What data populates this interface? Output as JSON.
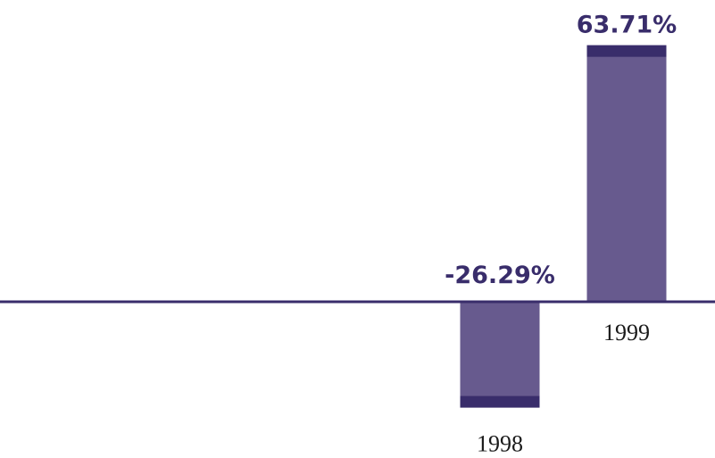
{
  "chart_data": {
    "type": "bar",
    "categories": [
      "1998",
      "1999"
    ],
    "values": [
      -26.29,
      63.71
    ],
    "value_labels": [
      "-26.29%",
      "63.71%"
    ],
    "title": "",
    "xlabel": "",
    "ylabel": "",
    "ylim": [
      -30,
      70
    ],
    "grid": false,
    "legend": "none"
  },
  "colors": {
    "bar_fill": "#675a8e",
    "bar_cap": "#392d6b",
    "axis_line": "#392d6b",
    "value_text": "#392d6b",
    "category_text": "#1a1a1a"
  }
}
